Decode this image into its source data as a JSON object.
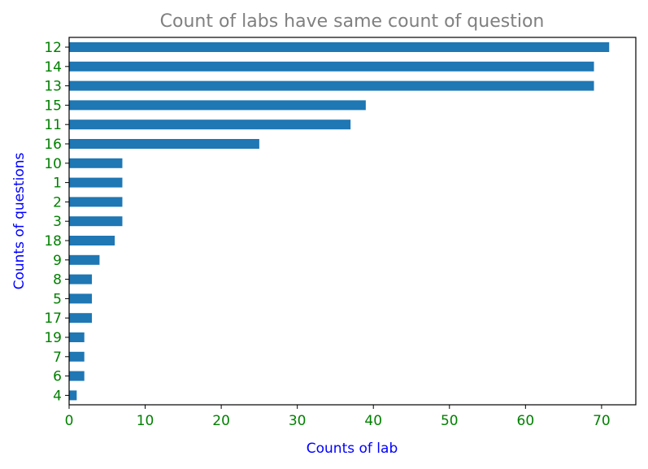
{
  "chart_data": {
    "type": "bar",
    "orientation": "horizontal",
    "title": "Count of labs have same count of question",
    "xlabel": "Counts of lab",
    "ylabel": "Counts of questions",
    "categories": [
      "12",
      "14",
      "13",
      "15",
      "11",
      "16",
      "10",
      "1",
      "2",
      "3",
      "18",
      "9",
      "8",
      "5",
      "17",
      "19",
      "7",
      "6",
      "4"
    ],
    "values": [
      71,
      69,
      69,
      39,
      37,
      25,
      7,
      7,
      7,
      7,
      6,
      4,
      3,
      3,
      3,
      2,
      2,
      2,
      1
    ],
    "xlim": [
      0,
      74.5
    ],
    "xticks": [
      0,
      10,
      20,
      30,
      40,
      50,
      60,
      70
    ],
    "grid": false,
    "legend": "none",
    "colors": {
      "bar": "#1f77b4",
      "title": "#808080",
      "axis_label": "#0000ff",
      "tick_label": "#008000"
    }
  }
}
